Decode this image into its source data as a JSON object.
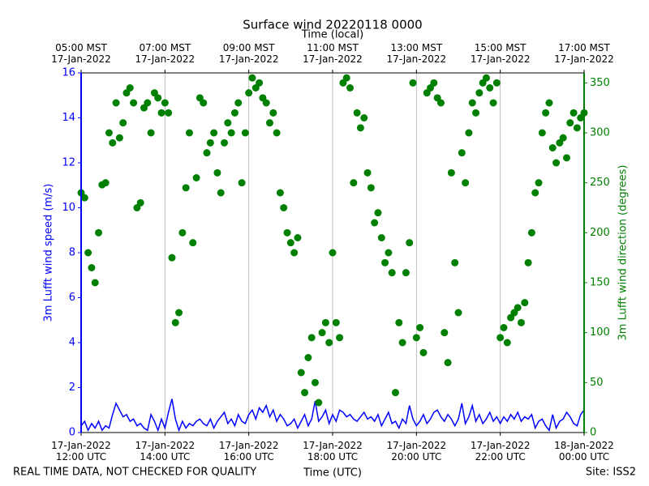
{
  "chart_data": {
    "type": "line",
    "title": "Surface wind 20220118 0000",
    "x2label": "Time (local)",
    "xlabel": "Time (UTC)",
    "note": "REAL TIME DATA, NOT CHECKED FOR QUALITY",
    "site": "Site: ISS2",
    "grid": "x",
    "xlim": [
      "2022-01-17 12:00",
      "2022-01-18 00:00"
    ],
    "xticks": [
      {
        "value": "2022-01-17 12:00",
        "label": "17-Jan-2022\n12:00 UTC"
      },
      {
        "value": "2022-01-17 14:00",
        "label": "17-Jan-2022\n14:00 UTC"
      },
      {
        "value": "2022-01-17 16:00",
        "label": "17-Jan-2022\n16:00 UTC"
      },
      {
        "value": "2022-01-17 18:00",
        "label": "17-Jan-2022\n18:00 UTC"
      },
      {
        "value": "2022-01-17 20:00",
        "label": "17-Jan-2022\n20:00 UTC"
      },
      {
        "value": "2022-01-17 22:00",
        "label": "17-Jan-2022\n22:00 UTC"
      },
      {
        "value": "2022-01-18 00:00",
        "label": "18-Jan-2022\n00:00 UTC"
      }
    ],
    "x2ticks": [
      {
        "value": "2022-01-17 12:00",
        "label": "05:00 MST\n17-Jan-2022"
      },
      {
        "value": "2022-01-17 14:00",
        "label": "07:00 MST\n17-Jan-2022"
      },
      {
        "value": "2022-01-17 16:00",
        "label": "09:00 MST\n17-Jan-2022"
      },
      {
        "value": "2022-01-17 18:00",
        "label": "11:00 MST\n17-Jan-2022"
      },
      {
        "value": "2022-01-17 20:00",
        "label": "13:00 MST\n17-Jan-2022"
      },
      {
        "value": "2022-01-17 22:00",
        "label": "15:00 MST\n17-Jan-2022"
      },
      {
        "value": "2022-01-18 00:00",
        "label": "17:00 MST\n17-Jan-2022"
      }
    ],
    "ylim": [
      0,
      16
    ],
    "yticks": [
      0,
      2,
      4,
      6,
      8,
      10,
      12,
      14,
      16
    ],
    "y2lim": [
      0,
      360
    ],
    "y2ticks": [
      0,
      50,
      100,
      150,
      200,
      250,
      300,
      350
    ],
    "x": [
      "2022-01-17 12:00",
      "2022-01-17 12:05",
      "2022-01-17 12:10",
      "2022-01-17 12:15",
      "2022-01-17 12:20",
      "2022-01-17 12:25",
      "2022-01-17 12:30",
      "2022-01-17 12:35",
      "2022-01-17 12:40",
      "2022-01-17 12:45",
      "2022-01-17 12:50",
      "2022-01-17 12:55",
      "2022-01-17 13:00",
      "2022-01-17 13:05",
      "2022-01-17 13:10",
      "2022-01-17 13:15",
      "2022-01-17 13:20",
      "2022-01-17 13:25",
      "2022-01-17 13:30",
      "2022-01-17 13:35",
      "2022-01-17 13:40",
      "2022-01-17 13:45",
      "2022-01-17 13:50",
      "2022-01-17 13:55",
      "2022-01-17 14:00",
      "2022-01-17 14:05",
      "2022-01-17 14:10",
      "2022-01-17 14:15",
      "2022-01-17 14:20",
      "2022-01-17 14:25",
      "2022-01-17 14:30",
      "2022-01-17 14:35",
      "2022-01-17 14:40",
      "2022-01-17 14:45",
      "2022-01-17 14:50",
      "2022-01-17 14:55",
      "2022-01-17 15:00",
      "2022-01-17 15:05",
      "2022-01-17 15:10",
      "2022-01-17 15:15",
      "2022-01-17 15:20",
      "2022-01-17 15:25",
      "2022-01-17 15:30",
      "2022-01-17 15:35",
      "2022-01-17 15:40",
      "2022-01-17 15:45",
      "2022-01-17 15:50",
      "2022-01-17 15:55",
      "2022-01-17 16:00",
      "2022-01-17 16:05",
      "2022-01-17 16:10",
      "2022-01-17 16:15",
      "2022-01-17 16:20",
      "2022-01-17 16:25",
      "2022-01-17 16:30",
      "2022-01-17 16:35",
      "2022-01-17 16:40",
      "2022-01-17 16:45",
      "2022-01-17 16:50",
      "2022-01-17 16:55",
      "2022-01-17 17:00",
      "2022-01-17 17:05",
      "2022-01-17 17:10",
      "2022-01-17 17:15",
      "2022-01-17 17:20",
      "2022-01-17 17:25",
      "2022-01-17 17:30",
      "2022-01-17 17:35",
      "2022-01-17 17:40",
      "2022-01-17 17:45",
      "2022-01-17 17:50",
      "2022-01-17 17:55",
      "2022-01-17 18:00",
      "2022-01-17 18:05",
      "2022-01-17 18:10",
      "2022-01-17 18:15",
      "2022-01-17 18:20",
      "2022-01-17 18:25",
      "2022-01-17 18:30",
      "2022-01-17 18:35",
      "2022-01-17 18:40",
      "2022-01-17 18:45",
      "2022-01-17 18:50",
      "2022-01-17 18:55",
      "2022-01-17 19:00",
      "2022-01-17 19:05",
      "2022-01-17 19:10",
      "2022-01-17 19:15",
      "2022-01-17 19:20",
      "2022-01-17 19:25",
      "2022-01-17 19:30",
      "2022-01-17 19:35",
      "2022-01-17 19:40",
      "2022-01-17 19:45",
      "2022-01-17 19:50",
      "2022-01-17 19:55",
      "2022-01-17 20:00",
      "2022-01-17 20:05",
      "2022-01-17 20:10",
      "2022-01-17 20:15",
      "2022-01-17 20:20",
      "2022-01-17 20:25",
      "2022-01-17 20:30",
      "2022-01-17 20:35",
      "2022-01-17 20:40",
      "2022-01-17 20:45",
      "2022-01-17 20:50",
      "2022-01-17 20:55",
      "2022-01-17 21:00",
      "2022-01-17 21:05",
      "2022-01-17 21:10",
      "2022-01-17 21:15",
      "2022-01-17 21:20",
      "2022-01-17 21:25",
      "2022-01-17 21:30",
      "2022-01-17 21:35",
      "2022-01-17 21:40",
      "2022-01-17 21:45",
      "2022-01-17 21:50",
      "2022-01-17 21:55",
      "2022-01-17 22:00",
      "2022-01-17 22:05",
      "2022-01-17 22:10",
      "2022-01-17 22:15",
      "2022-01-17 22:20",
      "2022-01-17 22:25",
      "2022-01-17 22:30",
      "2022-01-17 22:35",
      "2022-01-17 22:40",
      "2022-01-17 22:45",
      "2022-01-17 22:50",
      "2022-01-17 22:55",
      "2022-01-17 23:00",
      "2022-01-17 23:05",
      "2022-01-17 23:10",
      "2022-01-17 23:15",
      "2022-01-17 23:20",
      "2022-01-17 23:25",
      "2022-01-17 23:30",
      "2022-01-17 23:35",
      "2022-01-17 23:40",
      "2022-01-17 23:45",
      "2022-01-17 23:50",
      "2022-01-17 23:55",
      "2022-01-18 00:00"
    ],
    "series": [
      {
        "name": "3m Lufft wind speed (m/s)",
        "color": "#0000ff",
        "type": "line",
        "values": [
          0.3,
          0.5,
          0.1,
          0.4,
          0.2,
          0.5,
          0.1,
          0.3,
          0.2,
          0.8,
          1.3,
          1.0,
          0.7,
          0.8,
          0.5,
          0.6,
          0.3,
          0.4,
          0.2,
          0.1,
          0.8,
          0.5,
          0.1,
          0.6,
          0.2,
          0.9,
          1.5,
          0.6,
          0.1,
          0.5,
          0.2,
          0.4,
          0.3,
          0.5,
          0.6,
          0.4,
          0.3,
          0.6,
          0.2,
          0.5,
          0.7,
          0.9,
          0.4,
          0.6,
          0.3,
          0.8,
          0.5,
          0.4,
          0.8,
          1.0,
          0.6,
          1.1,
          0.9,
          1.2,
          0.7,
          1.0,
          0.5,
          0.8,
          0.6,
          0.3,
          0.4,
          0.6,
          0.2,
          0.5,
          0.8,
          0.3,
          0.6,
          1.4,
          0.5,
          0.7,
          1.0,
          0.4,
          0.8,
          0.5,
          1.0,
          0.9,
          0.7,
          0.8,
          0.6,
          0.5,
          0.7,
          0.9,
          0.6,
          0.7,
          0.5,
          0.8,
          0.3,
          0.6,
          0.9,
          0.4,
          0.5,
          0.2,
          0.6,
          0.4,
          1.2,
          0.6,
          0.3,
          0.5,
          0.8,
          0.4,
          0.6,
          0.9,
          1.0,
          0.7,
          0.5,
          0.8,
          0.6,
          0.3,
          0.6,
          1.3,
          0.4,
          0.7,
          1.2,
          0.5,
          0.8,
          0.4,
          0.6,
          0.9,
          0.5,
          0.7,
          0.4,
          0.7,
          0.5,
          0.8,
          0.6,
          0.9,
          0.5,
          0.7,
          0.6,
          0.8,
          0.2,
          0.5,
          0.6,
          0.3,
          0.1,
          0.8,
          0.2,
          0.5,
          0.6,
          0.9,
          0.7,
          0.4,
          0.3,
          0.8,
          1.0
        ]
      },
      {
        "name": "3m Lufft wind direction (degrees)",
        "color": "#008000",
        "type": "scatter",
        "axis": "y2",
        "values": [
          240,
          235,
          180,
          165,
          150,
          200,
          248,
          250,
          300,
          290,
          330,
          295,
          310,
          340,
          345,
          330,
          225,
          230,
          325,
          330,
          300,
          340,
          335,
          320,
          330,
          320,
          175,
          110,
          120,
          200,
          245,
          300,
          190,
          255,
          335,
          330,
          280,
          290,
          300,
          260,
          240,
          290,
          310,
          300,
          320,
          330,
          250,
          300,
          340,
          355,
          345,
          350,
          335,
          330,
          310,
          320,
          300,
          240,
          225,
          200,
          190,
          180,
          195,
          60,
          40,
          75,
          95,
          50,
          30,
          100,
          110,
          90,
          180,
          110,
          95,
          350,
          355,
          345,
          250,
          320,
          305,
          315,
          260,
          245,
          210,
          220,
          195,
          170,
          180,
          160,
          40,
          110,
          90,
          160,
          190,
          350,
          95,
          105,
          80,
          340,
          345,
          350,
          335,
          330,
          100,
          70,
          260,
          170,
          120,
          280,
          250,
          300,
          330,
          320,
          340,
          350,
          355,
          345,
          330,
          350,
          95,
          105,
          90,
          115,
          120,
          125,
          110,
          130,
          170,
          200,
          240,
          250,
          300,
          320,
          330,
          285,
          270,
          290,
          295,
          275,
          310,
          320,
          305,
          315,
          320
        ]
      }
    ]
  }
}
